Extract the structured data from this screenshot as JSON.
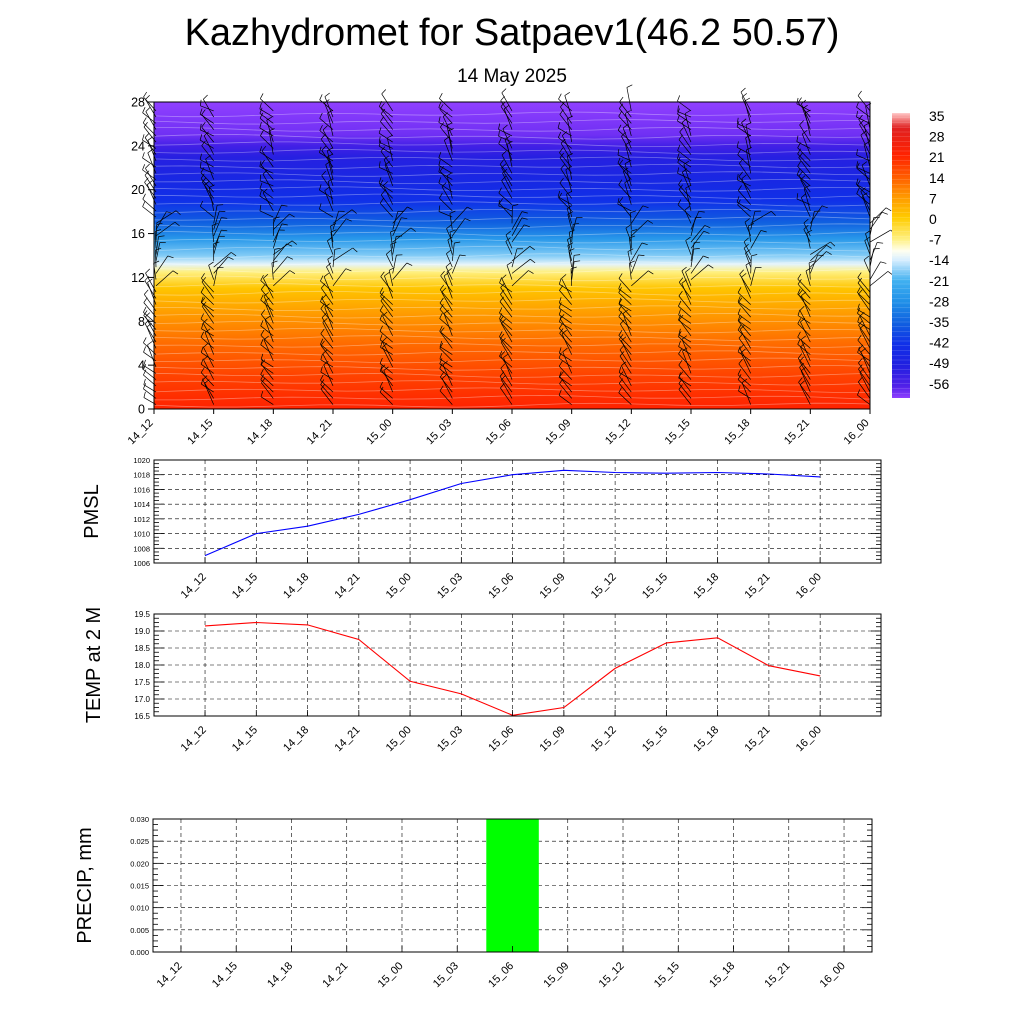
{
  "header": {
    "title": "Kazhydromet for Satpaev1(46.2 50.57)",
    "date": "14 May 2025"
  },
  "time_labels": [
    "14_12",
    "14_15",
    "14_18",
    "14_21",
    "15_00",
    "15_03",
    "15_06",
    "15_09",
    "15_12",
    "15_15",
    "15_18",
    "15_21",
    "16_00"
  ],
  "chart_data": [
    {
      "type": "heatmap",
      "title": "",
      "xlabel": "",
      "ylabel": "",
      "x": [
        "14_12",
        "14_15",
        "14_18",
        "14_21",
        "15_00",
        "15_03",
        "15_06",
        "15_09",
        "15_12",
        "15_15",
        "15_18",
        "15_21",
        "16_00"
      ],
      "ylim": [
        0,
        28
      ],
      "yticks": [
        0,
        4,
        8,
        12,
        16,
        20,
        24,
        28
      ],
      "colorbar": {
        "labels": [
          "35",
          "28",
          "21",
          "14",
          "7",
          "0",
          "-7",
          "-14",
          "-21",
          "-28",
          "-35",
          "-42",
          "-49",
          "-56"
        ],
        "stops": [
          {
            "v": 35,
            "color": "#ffc8c8"
          },
          {
            "v": 30,
            "color": "#e02020"
          },
          {
            "v": 21,
            "color": "#ff2200"
          },
          {
            "v": 14,
            "color": "#ff5a00"
          },
          {
            "v": 7,
            "color": "#ff9a00"
          },
          {
            "v": 0,
            "color": "#ffcc00"
          },
          {
            "v": -7,
            "color": "#fff080"
          },
          {
            "v": -11,
            "color": "#fffff0"
          },
          {
            "v": -14,
            "color": "#d8eeff"
          },
          {
            "v": -21,
            "color": "#40b0f0"
          },
          {
            "v": -28,
            "color": "#2090e8"
          },
          {
            "v": -35,
            "color": "#1060e0"
          },
          {
            "v": -42,
            "color": "#1030e8"
          },
          {
            "v": -49,
            "color": "#2020e0"
          },
          {
            "v": -56,
            "color": "#5020e8"
          },
          {
            "v": -60,
            "color": "#9040ff"
          }
        ]
      },
      "profile": [
        {
          "h": 0,
          "t": 21
        },
        {
          "h": 3,
          "t": 17
        },
        {
          "h": 6,
          "t": 12
        },
        {
          "h": 9,
          "t": 6
        },
        {
          "h": 11,
          "t": 1
        },
        {
          "h": 12.5,
          "t": -7
        },
        {
          "h": 13.2,
          "t": -13
        },
        {
          "h": 14,
          "t": -18
        },
        {
          "h": 15.5,
          "t": -26
        },
        {
          "h": 17,
          "t": -35
        },
        {
          "h": 19,
          "t": -42
        },
        {
          "h": 21,
          "t": -46
        },
        {
          "h": 23,
          "t": -50
        },
        {
          "h": 24,
          "t": -54
        },
        {
          "h": 25,
          "t": -58
        },
        {
          "h": 28,
          "t": -60
        }
      ]
    },
    {
      "type": "line",
      "title": "",
      "ylabel": "PMSL",
      "xlabel": "",
      "x": [
        "14_12",
        "14_15",
        "14_18",
        "14_21",
        "15_00",
        "15_03",
        "15_06",
        "15_09",
        "15_12",
        "15_15",
        "15_18",
        "15_21",
        "16_00"
      ],
      "series": [
        {
          "values": [
            1007.0,
            1010.0,
            1011.0,
            1012.6,
            1014.6,
            1016.8,
            1018.0,
            1018.6,
            1018.3,
            1018.2,
            1018.3,
            1018.1,
            1017.7
          ],
          "color": "#0000ff"
        }
      ],
      "ylim": [
        1006,
        1020
      ],
      "yticks": [
        1006,
        1008,
        1010,
        1012,
        1014,
        1016,
        1018,
        1020
      ],
      "ytick_labels": [
        "1006",
        "1008",
        "1010",
        "1012",
        "1014",
        "1016",
        "1018",
        "1020"
      ],
      "grid": true
    },
    {
      "type": "line",
      "title": "",
      "ylabel": "TEMP at 2 M",
      "xlabel": "",
      "x": [
        "14_12",
        "14_15",
        "14_18",
        "14_21",
        "15_00",
        "15_03",
        "15_06",
        "15_09",
        "15_12",
        "15_15",
        "15_18",
        "15_21",
        "16_00"
      ],
      "series": [
        {
          "values": [
            19.15,
            19.25,
            19.18,
            18.75,
            17.52,
            17.15,
            16.52,
            16.75,
            17.9,
            18.65,
            18.8,
            17.98,
            17.68
          ],
          "color": "#ff0000"
        }
      ],
      "ylim": [
        16.5,
        19.5
      ],
      "yticks": [
        16.5,
        17.0,
        17.5,
        18.0,
        18.5,
        19.0,
        19.5
      ],
      "ytick_labels": [
        "16.5",
        "17.0",
        "17.5",
        "18.0",
        "18.5",
        "19.0",
        "19.5"
      ],
      "grid": true
    },
    {
      "type": "bar",
      "title": "",
      "ylabel": "PRECIP, mm",
      "xlabel": "",
      "categories": [
        "14_12",
        "14_15",
        "14_18",
        "14_21",
        "15_00",
        "15_03",
        "15_06",
        "15_09",
        "15_12",
        "15_15",
        "15_18",
        "15_21",
        "16_00"
      ],
      "values": [
        0,
        0,
        0,
        0,
        0,
        0,
        0.03,
        0,
        0,
        0,
        0,
        0,
        0
      ],
      "bar_color": "#00ff00",
      "ylim": [
        0,
        0.03
      ],
      "yticks": [
        0,
        0.005,
        0.01,
        0.015,
        0.02,
        0.025,
        0.03
      ],
      "ytick_labels": [
        "0.000",
        "0.005",
        "0.010",
        "0.015",
        "0.020",
        "0.025",
        "0.030"
      ],
      "grid": true
    }
  ]
}
